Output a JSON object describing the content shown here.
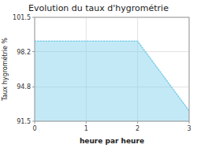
{
  "chart_data": {
    "type": "area",
    "title": "Evolution du taux d'hygrométrie",
    "xlabel": "heure par heure",
    "ylabel": "Taux hygrométrie %",
    "x": [
      0,
      2,
      3
    ],
    "values": [
      99.2,
      99.2,
      92.5
    ],
    "color": "#7dcfea",
    "line_style": "dotted",
    "xlim": [
      0,
      3
    ],
    "ylim": [
      91.5,
      101.5
    ],
    "xticks": [
      0,
      1,
      2,
      3
    ],
    "yticks": [
      91.5,
      94.8,
      98.2,
      101.5
    ],
    "grid": true
  }
}
